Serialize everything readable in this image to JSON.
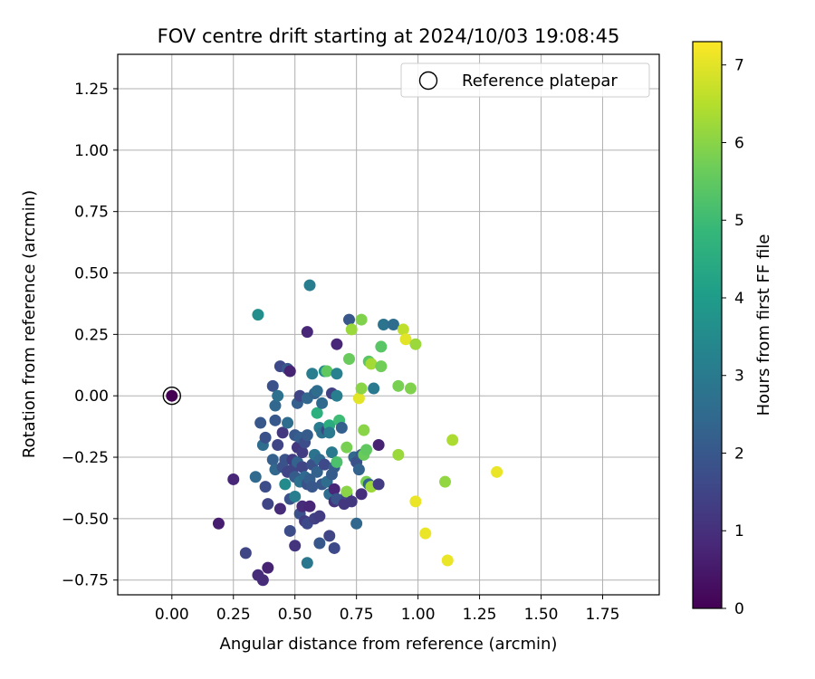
{
  "chart_data": {
    "type": "scatter",
    "title": "FOV centre drift starting at 2024/10/03 19:08:45",
    "xlabel": "Angular distance from reference (arcmin)",
    "ylabel": "Rotation from reference (arcmin)",
    "xlim": [
      -0.22,
      1.98
    ],
    "ylim": [
      -0.81,
      1.39
    ],
    "xticks": [
      "0.00",
      "0.25",
      "0.50",
      "0.75",
      "1.00",
      "1.25",
      "1.50",
      "1.75"
    ],
    "yticks": [
      "−0.75",
      "−0.50",
      "−0.25",
      "0.00",
      "0.25",
      "0.50",
      "0.75",
      "1.00",
      "1.25"
    ],
    "grid": true,
    "legend": {
      "position": "top-right",
      "entries": [
        "Reference platepar"
      ]
    },
    "colorbar": {
      "label": "Hours from first FF file",
      "range": [
        0,
        7.3
      ],
      "ticks": [
        "0",
        "1",
        "2",
        "3",
        "4",
        "5",
        "6",
        "7"
      ],
      "colormap": "viridis"
    },
    "reference_point": {
      "x": 0.0,
      "y": 0.0,
      "c": 0.0
    },
    "points": [
      [
        0.19,
        -0.52,
        0.6
      ],
      [
        0.25,
        -0.34,
        0.8
      ],
      [
        0.3,
        -0.64,
        1.5
      ],
      [
        0.34,
        -0.33,
        2.5
      ],
      [
        0.35,
        0.33,
        3.6
      ],
      [
        0.35,
        -0.73,
        0.9
      ],
      [
        0.36,
        -0.11,
        2.0
      ],
      [
        0.37,
        -0.2,
        2.6
      ],
      [
        0.37,
        -0.75,
        0.9
      ],
      [
        0.38,
        -0.17,
        1.8
      ],
      [
        0.38,
        -0.37,
        1.7
      ],
      [
        0.39,
        -0.7,
        0.7
      ],
      [
        0.39,
        -0.44,
        1.5
      ],
      [
        0.41,
        0.04,
        1.8
      ],
      [
        0.41,
        -0.26,
        2.2
      ],
      [
        0.42,
        -0.1,
        2.0
      ],
      [
        0.42,
        -0.04,
        2.4
      ],
      [
        0.42,
        -0.3,
        2.4
      ],
      [
        0.43,
        0.0,
        2.7
      ],
      [
        0.43,
        -0.2,
        1.5
      ],
      [
        0.44,
        -0.46,
        0.9
      ],
      [
        0.44,
        0.12,
        1.6
      ],
      [
        0.45,
        -0.15,
        1.2
      ],
      [
        0.45,
        -0.29,
        1.8
      ],
      [
        0.46,
        -0.26,
        1.9
      ],
      [
        0.46,
        -0.36,
        3.5
      ],
      [
        0.47,
        0.11,
        2.0
      ],
      [
        0.47,
        -0.11,
        2.6
      ],
      [
        0.47,
        -0.31,
        1.5
      ],
      [
        0.48,
        -0.55,
        1.7
      ],
      [
        0.48,
        0.1,
        0.7
      ],
      [
        0.48,
        -0.42,
        1.9
      ],
      [
        0.49,
        -0.26,
        1.3
      ],
      [
        0.49,
        -0.3,
        1.5
      ],
      [
        0.5,
        -0.16,
        2.0
      ],
      [
        0.5,
        -0.33,
        2.1
      ],
      [
        0.5,
        -0.41,
        3.1
      ],
      [
        0.5,
        -0.61,
        1.1
      ],
      [
        0.51,
        -0.03,
        2.2
      ],
      [
        0.51,
        -0.21,
        1.2
      ],
      [
        0.51,
        -0.27,
        2.3
      ],
      [
        0.52,
        -0.17,
        2.2
      ],
      [
        0.52,
        0.0,
        1.5
      ],
      [
        0.52,
        -0.35,
        2.7
      ],
      [
        0.52,
        -0.48,
        1.8
      ],
      [
        0.53,
        -0.23,
        1.3
      ],
      [
        0.53,
        -0.45,
        0.9
      ],
      [
        0.53,
        -0.29,
        1.5
      ],
      [
        0.54,
        -0.51,
        1.3
      ],
      [
        0.54,
        -0.19,
        1.7
      ],
      [
        0.54,
        -0.33,
        2.5
      ],
      [
        0.55,
        0.26,
        0.8
      ],
      [
        0.55,
        -0.68,
        2.9
      ],
      [
        0.55,
        -0.01,
        2.4
      ],
      [
        0.55,
        -0.36,
        1.8
      ],
      [
        0.55,
        -0.52,
        1.6
      ],
      [
        0.55,
        -0.16,
        2.1
      ],
      [
        0.56,
        0.45,
        3.1
      ],
      [
        0.56,
        -0.45,
        0.8
      ],
      [
        0.56,
        -0.34,
        2.2
      ],
      [
        0.57,
        0.09,
        3.1
      ],
      [
        0.57,
        -0.28,
        1.8
      ],
      [
        0.57,
        -0.37,
        2.0
      ],
      [
        0.58,
        -0.5,
        1.4
      ],
      [
        0.58,
        -0.24,
        2.8
      ],
      [
        0.58,
        0.01,
        2.3
      ],
      [
        0.59,
        -0.07,
        4.6
      ],
      [
        0.59,
        -0.31,
        2.3
      ],
      [
        0.59,
        0.02,
        2.6
      ],
      [
        0.6,
        -0.6,
        2.0
      ],
      [
        0.6,
        -0.13,
        3.1
      ],
      [
        0.6,
        -0.49,
        1.3
      ],
      [
        0.6,
        -0.26,
        2.5
      ],
      [
        0.61,
        -0.03,
        2.5
      ],
      [
        0.61,
        -0.36,
        2.0
      ],
      [
        0.61,
        -0.15,
        2.7
      ],
      [
        0.62,
        0.1,
        3.5
      ],
      [
        0.62,
        -0.28,
        1.6
      ],
      [
        0.63,
        0.1,
        5.5
      ],
      [
        0.63,
        -0.14,
        1.5
      ],
      [
        0.63,
        -0.35,
        2.6
      ],
      [
        0.64,
        -0.57,
        1.5
      ],
      [
        0.64,
        -0.12,
        4.5
      ],
      [
        0.64,
        -0.15,
        3.0
      ],
      [
        0.64,
        -0.4,
        2.6
      ],
      [
        0.65,
        -0.23,
        3.0
      ],
      [
        0.65,
        -0.32,
        2.1
      ],
      [
        0.65,
        0.01,
        1.4
      ],
      [
        0.66,
        -0.62,
        1.6
      ],
      [
        0.66,
        -0.38,
        0.8
      ],
      [
        0.66,
        -0.29,
        2.1
      ],
      [
        0.66,
        -0.43,
        1.1
      ],
      [
        0.67,
        0.21,
        0.8
      ],
      [
        0.67,
        0.0,
        3.1
      ],
      [
        0.67,
        0.09,
        3.2
      ],
      [
        0.67,
        -0.27,
        5.2
      ],
      [
        0.67,
        -0.42,
        1.9
      ],
      [
        0.68,
        -0.1,
        5.0
      ],
      [
        0.69,
        -0.13,
        2.2
      ],
      [
        0.7,
        -0.44,
        1.2
      ],
      [
        0.71,
        -0.4,
        1.5
      ],
      [
        0.71,
        -0.21,
        5.8
      ],
      [
        0.71,
        -0.39,
        6.0
      ],
      [
        0.72,
        0.31,
        2.0
      ],
      [
        0.72,
        0.15,
        5.6
      ],
      [
        0.73,
        -0.43,
        1.2
      ],
      [
        0.73,
        0.27,
        6.2
      ],
      [
        0.74,
        -0.25,
        2.4
      ],
      [
        0.75,
        -0.52,
        2.4
      ],
      [
        0.75,
        -0.27,
        1.8
      ],
      [
        0.76,
        -0.01,
        7.0
      ],
      [
        0.76,
        -0.3,
        2.3
      ],
      [
        0.77,
        0.31,
        5.9
      ],
      [
        0.77,
        0.03,
        6.0
      ],
      [
        0.77,
        -0.24,
        2.0
      ],
      [
        0.77,
        -0.4,
        1.0
      ],
      [
        0.78,
        -0.24,
        5.6
      ],
      [
        0.78,
        -0.14,
        6.0
      ],
      [
        0.79,
        -0.35,
        5.8
      ],
      [
        0.79,
        -0.22,
        5.5
      ],
      [
        0.8,
        0.14,
        5.4
      ],
      [
        0.8,
        -0.36,
        2.3
      ],
      [
        0.81,
        -0.37,
        6.2
      ],
      [
        0.81,
        0.13,
        6.3
      ],
      [
        0.82,
        0.03,
        3.0
      ],
      [
        0.84,
        -0.36,
        1.3
      ],
      [
        0.84,
        -0.2,
        0.7
      ],
      [
        0.85,
        0.2,
        5.4
      ],
      [
        0.85,
        0.12,
        5.7
      ],
      [
        0.86,
        0.29,
        2.8
      ],
      [
        0.9,
        0.29,
        2.6
      ],
      [
        0.92,
        -0.24,
        6.2
      ],
      [
        0.92,
        0.04,
        5.8
      ],
      [
        0.94,
        0.27,
        6.6
      ],
      [
        0.95,
        0.23,
        7.0
      ],
      [
        0.97,
        0.03,
        5.9
      ],
      [
        0.99,
        0.21,
        6.2
      ],
      [
        0.99,
        -0.43,
        7.1
      ],
      [
        1.03,
        -0.56,
        7.1
      ],
      [
        1.11,
        -0.35,
        6.1
      ],
      [
        1.12,
        -0.67,
        7.1
      ],
      [
        1.14,
        -0.18,
        6.4
      ],
      [
        1.32,
        -0.31,
        7.1
      ]
    ]
  }
}
